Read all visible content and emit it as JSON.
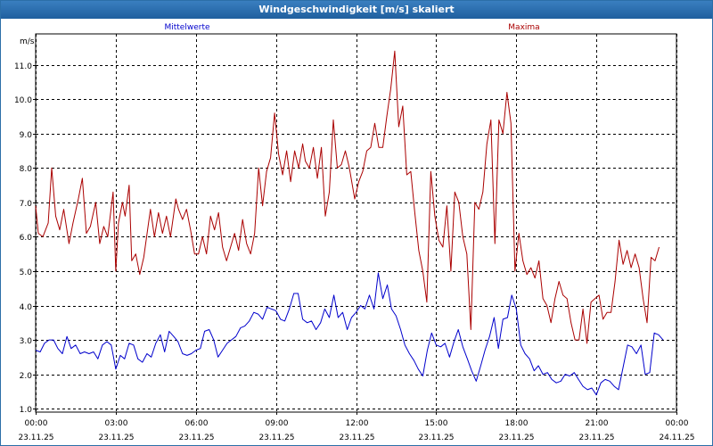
{
  "window": {
    "title": "Windgeschwindigkeit [m/s] skaliert"
  },
  "chart_data": {
    "type": "line",
    "title": "Windgeschwindigkeit [m/s] skaliert",
    "ylabel": "m/s",
    "xlabel": "",
    "ylim": [
      0.9,
      11.9
    ],
    "xlim": [
      0,
      24
    ],
    "grid": true,
    "y_ticks": [
      "1.0",
      "2.0",
      "3.0",
      "4.0",
      "5.0",
      "6.0",
      "7.0",
      "8.0",
      "9.0",
      "10.0",
      "11.0"
    ],
    "x_ticks": [
      {
        "time": "00:00",
        "date": "23.11.25"
      },
      {
        "time": "03:00",
        "date": "23.11.25"
      },
      {
        "time": "06:00",
        "date": "23.11.25"
      },
      {
        "time": "09:00",
        "date": "23.11.25"
      },
      {
        "time": "12:00",
        "date": "23.11.25"
      },
      {
        "time": "15:00",
        "date": "23.11.25"
      },
      {
        "time": "18:00",
        "date": "23.11.25"
      },
      {
        "time": "21:00",
        "date": "23.11.25"
      },
      {
        "time": "00:00",
        "date": "24.11.25"
      }
    ],
    "series": [
      {
        "name": "Mittelwerte",
        "color": "#0000cc",
        "values": [
          [
            0.0,
            2.7
          ],
          [
            0.17,
            2.65
          ],
          [
            0.33,
            2.9
          ],
          [
            0.5,
            3.0
          ],
          [
            0.67,
            3.0
          ],
          [
            0.83,
            2.75
          ],
          [
            1.0,
            2.6
          ],
          [
            1.17,
            3.1
          ],
          [
            1.33,
            2.75
          ],
          [
            1.5,
            2.85
          ],
          [
            1.67,
            2.6
          ],
          [
            1.83,
            2.65
          ],
          [
            2.0,
            2.6
          ],
          [
            2.17,
            2.65
          ],
          [
            2.33,
            2.45
          ],
          [
            2.5,
            2.85
          ],
          [
            2.67,
            2.95
          ],
          [
            2.83,
            2.85
          ],
          [
            3.0,
            2.15
          ],
          [
            3.17,
            2.55
          ],
          [
            3.33,
            2.45
          ],
          [
            3.5,
            2.9
          ],
          [
            3.67,
            2.85
          ],
          [
            3.83,
            2.45
          ],
          [
            4.0,
            2.35
          ],
          [
            4.17,
            2.6
          ],
          [
            4.33,
            2.5
          ],
          [
            4.5,
            2.9
          ],
          [
            4.67,
            3.15
          ],
          [
            4.83,
            2.65
          ],
          [
            5.0,
            3.25
          ],
          [
            5.17,
            3.1
          ],
          [
            5.33,
            2.95
          ],
          [
            5.5,
            2.6
          ],
          [
            5.67,
            2.55
          ],
          [
            5.83,
            2.6
          ],
          [
            6.0,
            2.7
          ],
          [
            6.17,
            2.75
          ],
          [
            6.33,
            3.25
          ],
          [
            6.5,
            3.3
          ],
          [
            6.67,
            3.0
          ],
          [
            6.83,
            2.5
          ],
          [
            7.0,
            2.7
          ],
          [
            7.17,
            2.9
          ],
          [
            7.33,
            3.0
          ],
          [
            7.5,
            3.1
          ],
          [
            7.67,
            3.35
          ],
          [
            7.83,
            3.4
          ],
          [
            8.0,
            3.55
          ],
          [
            8.17,
            3.8
          ],
          [
            8.33,
            3.75
          ],
          [
            8.5,
            3.6
          ],
          [
            8.67,
            3.95
          ],
          [
            8.83,
            3.9
          ],
          [
            9.0,
            3.85
          ],
          [
            9.17,
            3.6
          ],
          [
            9.33,
            3.55
          ],
          [
            9.5,
            3.9
          ],
          [
            9.67,
            4.35
          ],
          [
            9.83,
            4.35
          ],
          [
            10.0,
            3.6
          ],
          [
            10.17,
            3.5
          ],
          [
            10.33,
            3.55
          ],
          [
            10.5,
            3.3
          ],
          [
            10.67,
            3.5
          ],
          [
            10.83,
            3.9
          ],
          [
            11.0,
            3.65
          ],
          [
            11.17,
            4.3
          ],
          [
            11.33,
            3.65
          ],
          [
            11.5,
            3.8
          ],
          [
            11.67,
            3.3
          ],
          [
            11.83,
            3.65
          ],
          [
            12.0,
            3.8
          ],
          [
            12.17,
            4.0
          ],
          [
            12.33,
            3.9
          ],
          [
            12.5,
            4.3
          ],
          [
            12.67,
            3.9
          ],
          [
            12.83,
            4.95
          ],
          [
            13.0,
            4.2
          ],
          [
            13.17,
            4.6
          ],
          [
            13.33,
            3.9
          ],
          [
            13.5,
            3.7
          ],
          [
            13.67,
            3.3
          ],
          [
            13.83,
            2.85
          ],
          [
            14.0,
            2.6
          ],
          [
            14.17,
            2.4
          ],
          [
            14.33,
            2.15
          ],
          [
            14.5,
            1.95
          ],
          [
            14.67,
            2.7
          ],
          [
            14.83,
            3.2
          ],
          [
            15.0,
            2.85
          ],
          [
            15.17,
            2.8
          ],
          [
            15.33,
            2.9
          ],
          [
            15.5,
            2.5
          ],
          [
            15.67,
            2.95
          ],
          [
            15.83,
            3.3
          ],
          [
            16.0,
            2.8
          ],
          [
            16.17,
            2.45
          ],
          [
            16.33,
            2.1
          ],
          [
            16.5,
            1.8
          ],
          [
            16.67,
            2.25
          ],
          [
            16.83,
            2.7
          ],
          [
            17.0,
            3.1
          ],
          [
            17.17,
            3.65
          ],
          [
            17.33,
            2.75
          ],
          [
            17.5,
            3.6
          ],
          [
            17.67,
            3.65
          ],
          [
            17.83,
            4.3
          ],
          [
            18.0,
            3.9
          ],
          [
            18.17,
            2.85
          ],
          [
            18.33,
            2.6
          ],
          [
            18.5,
            2.45
          ],
          [
            18.67,
            2.1
          ],
          [
            18.83,
            2.25
          ],
          [
            19.0,
            2.0
          ],
          [
            19.17,
            2.05
          ],
          [
            19.33,
            1.85
          ],
          [
            19.5,
            1.75
          ],
          [
            19.67,
            1.8
          ],
          [
            19.83,
            2.0
          ],
          [
            20.0,
            1.95
          ],
          [
            20.17,
            2.05
          ],
          [
            20.33,
            1.85
          ],
          [
            20.5,
            1.65
          ],
          [
            20.67,
            1.55
          ],
          [
            20.83,
            1.6
          ],
          [
            21.0,
            1.4
          ],
          [
            21.17,
            1.75
          ],
          [
            21.33,
            1.85
          ],
          [
            21.5,
            1.8
          ],
          [
            21.67,
            1.65
          ],
          [
            21.83,
            1.55
          ],
          [
            22.0,
            2.2
          ],
          [
            22.17,
            2.85
          ],
          [
            22.33,
            2.8
          ],
          [
            22.5,
            2.6
          ],
          [
            22.67,
            2.85
          ],
          [
            22.83,
            2.0
          ],
          [
            23.0,
            2.05
          ],
          [
            23.17,
            3.2
          ],
          [
            23.33,
            3.15
          ],
          [
            23.5,
            3.0
          ]
        ]
      },
      {
        "name": "Maxima",
        "color": "#aa0000",
        "values": [
          [
            0.0,
            6.9
          ],
          [
            0.1,
            6.1
          ],
          [
            0.27,
            6.0
          ],
          [
            0.47,
            6.4
          ],
          [
            0.6,
            8.0
          ],
          [
            0.75,
            6.6
          ],
          [
            0.9,
            6.2
          ],
          [
            1.05,
            6.8
          ],
          [
            1.25,
            5.8
          ],
          [
            1.4,
            6.4
          ],
          [
            1.6,
            7.1
          ],
          [
            1.75,
            7.7
          ],
          [
            1.9,
            6.1
          ],
          [
            2.05,
            6.3
          ],
          [
            2.25,
            7.0
          ],
          [
            2.4,
            5.8
          ],
          [
            2.55,
            6.3
          ],
          [
            2.7,
            6.0
          ],
          [
            2.9,
            7.3
          ],
          [
            3.0,
            5.0
          ],
          [
            3.1,
            6.4
          ],
          [
            3.25,
            7.0
          ],
          [
            3.35,
            6.6
          ],
          [
            3.5,
            7.5
          ],
          [
            3.6,
            5.3
          ],
          [
            3.75,
            5.5
          ],
          [
            3.9,
            4.9
          ],
          [
            4.05,
            5.4
          ],
          [
            4.3,
            6.8
          ],
          [
            4.45,
            6.0
          ],
          [
            4.6,
            6.7
          ],
          [
            4.75,
            6.1
          ],
          [
            4.9,
            6.6
          ],
          [
            5.05,
            6.0
          ],
          [
            5.25,
            7.1
          ],
          [
            5.35,
            6.8
          ],
          [
            5.5,
            6.5
          ],
          [
            5.65,
            6.8
          ],
          [
            5.8,
            6.2
          ],
          [
            5.95,
            5.5
          ],
          [
            6.1,
            5.5
          ],
          [
            6.25,
            6.0
          ],
          [
            6.4,
            5.5
          ],
          [
            6.55,
            6.6
          ],
          [
            6.7,
            6.2
          ],
          [
            6.85,
            6.7
          ],
          [
            7.0,
            5.7
          ],
          [
            7.15,
            5.3
          ],
          [
            7.3,
            5.7
          ],
          [
            7.45,
            6.1
          ],
          [
            7.6,
            5.6
          ],
          [
            7.75,
            6.5
          ],
          [
            7.9,
            5.8
          ],
          [
            8.05,
            5.5
          ],
          [
            8.2,
            6.1
          ],
          [
            8.35,
            8.0
          ],
          [
            8.5,
            6.9
          ],
          [
            8.65,
            7.9
          ],
          [
            8.8,
            8.3
          ],
          [
            8.95,
            9.6
          ],
          [
            9.1,
            8.4
          ],
          [
            9.25,
            7.8
          ],
          [
            9.4,
            8.5
          ],
          [
            9.55,
            7.6
          ],
          [
            9.7,
            8.5
          ],
          [
            9.85,
            8.0
          ],
          [
            10.0,
            8.7
          ],
          [
            10.1,
            8.2
          ],
          [
            10.25,
            8.0
          ],
          [
            10.4,
            8.6
          ],
          [
            10.55,
            7.7
          ],
          [
            10.7,
            8.6
          ],
          [
            10.85,
            6.6
          ],
          [
            11.0,
            7.3
          ],
          [
            11.15,
            9.4
          ],
          [
            11.3,
            8.0
          ],
          [
            11.45,
            8.1
          ],
          [
            11.6,
            8.5
          ],
          [
            11.75,
            8.0
          ],
          [
            11.95,
            7.1
          ],
          [
            12.1,
            7.6
          ],
          [
            12.25,
            7.9
          ],
          [
            12.4,
            8.5
          ],
          [
            12.55,
            8.6
          ],
          [
            12.7,
            9.3
          ],
          [
            12.85,
            8.6
          ],
          [
            13.0,
            8.6
          ],
          [
            13.15,
            9.5
          ],
          [
            13.3,
            10.3
          ],
          [
            13.45,
            11.4
          ],
          [
            13.6,
            9.2
          ],
          [
            13.75,
            9.8
          ],
          [
            13.9,
            7.8
          ],
          [
            14.05,
            7.9
          ],
          [
            14.2,
            6.7
          ],
          [
            14.35,
            5.6
          ],
          [
            14.5,
            5.0
          ],
          [
            14.65,
            4.1
          ],
          [
            14.8,
            7.9
          ],
          [
            14.95,
            6.6
          ],
          [
            15.1,
            5.9
          ],
          [
            15.25,
            5.7
          ],
          [
            15.4,
            6.9
          ],
          [
            15.55,
            5.0
          ],
          [
            15.7,
            7.3
          ],
          [
            15.85,
            7.0
          ],
          [
            16.0,
            6.0
          ],
          [
            16.15,
            5.5
          ],
          [
            16.3,
            3.3
          ],
          [
            16.45,
            7.0
          ],
          [
            16.6,
            6.8
          ],
          [
            16.75,
            7.3
          ],
          [
            16.9,
            8.7
          ],
          [
            17.05,
            9.4
          ],
          [
            17.2,
            5.8
          ],
          [
            17.35,
            9.4
          ],
          [
            17.5,
            9.0
          ],
          [
            17.65,
            10.2
          ],
          [
            17.8,
            9.3
          ],
          [
            17.95,
            5.0
          ],
          [
            18.1,
            6.1
          ],
          [
            18.25,
            5.3
          ],
          [
            18.4,
            4.9
          ],
          [
            18.55,
            5.1
          ],
          [
            18.7,
            4.8
          ],
          [
            18.85,
            5.3
          ],
          [
            19.0,
            4.2
          ],
          [
            19.15,
            4.0
          ],
          [
            19.3,
            3.5
          ],
          [
            19.45,
            4.2
          ],
          [
            19.6,
            4.7
          ],
          [
            19.75,
            4.3
          ],
          [
            19.9,
            4.2
          ],
          [
            20.05,
            3.5
          ],
          [
            20.2,
            3.0
          ],
          [
            20.35,
            3.0
          ],
          [
            20.5,
            3.9
          ],
          [
            20.65,
            2.9
          ],
          [
            20.8,
            4.1
          ],
          [
            20.95,
            4.2
          ],
          [
            21.1,
            4.3
          ],
          [
            21.25,
            3.6
          ],
          [
            21.4,
            3.8
          ],
          [
            21.55,
            3.8
          ],
          [
            21.7,
            4.7
          ],
          [
            21.85,
            5.9
          ],
          [
            22.0,
            5.2
          ],
          [
            22.15,
            5.6
          ],
          [
            22.3,
            5.1
          ],
          [
            22.45,
            5.5
          ],
          [
            22.6,
            5.1
          ],
          [
            22.75,
            4.2
          ],
          [
            22.9,
            3.5
          ],
          [
            23.05,
            5.4
          ],
          [
            23.2,
            5.3
          ],
          [
            23.35,
            5.7
          ]
        ]
      }
    ]
  }
}
